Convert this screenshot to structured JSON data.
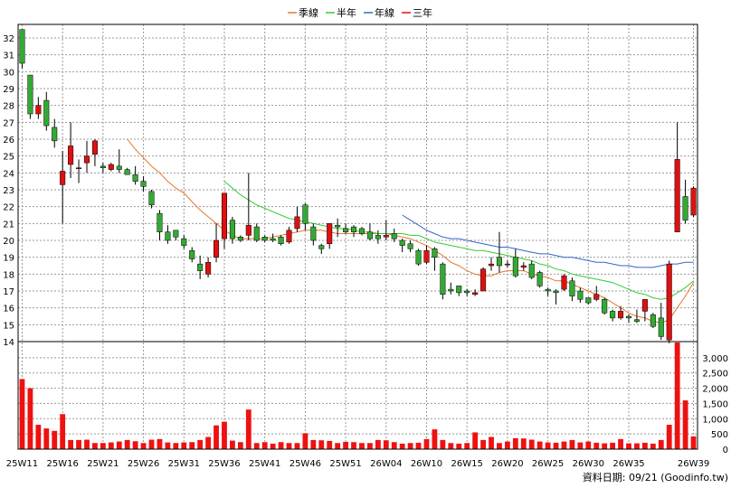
{
  "source_note": "資料日期: 09/21 (Goodinfo.tw)",
  "chart_data": {
    "type": "candlestick",
    "legend": [
      {
        "name": "季線",
        "color": "#e8762b"
      },
      {
        "name": "半年",
        "color": "#33cc33"
      },
      {
        "name": "年線",
        "color": "#3366cc"
      },
      {
        "name": "三年",
        "color": "#e01010"
      }
    ],
    "up_color": "#e01010",
    "down_color": "#33aa33",
    "volume_color": "#ee1111",
    "price_axis": {
      "min": 14,
      "max": 32,
      "ticks": [
        14,
        15,
        16,
        17,
        18,
        19,
        20,
        21,
        22,
        23,
        24,
        25,
        26,
        27,
        28,
        29,
        30,
        31,
        32
      ]
    },
    "volume_axis": {
      "min": 0,
      "max": 3000,
      "ticks": [
        0,
        500,
        1000,
        1500,
        2000,
        2500,
        3000
      ],
      "tick_labels": [
        "0",
        "500",
        "1,000",
        "1,500",
        "2,000",
        "2,500",
        "3,000"
      ]
    },
    "x_labels": [
      "25W11",
      "25W16",
      "25W21",
      "25W26",
      "25W31",
      "25W36",
      "25W41",
      "25W46",
      "25W51",
      "26W04",
      "26W10",
      "26W15",
      "26W20",
      "26W25",
      "26W30",
      "26W35",
      "26W39"
    ],
    "label_every": 5,
    "candles": [
      [
        32.5,
        30.5,
        32.5,
        30.2
      ],
      [
        29.8,
        27.5,
        29.8,
        27.2
      ],
      [
        27.5,
        28,
        28.5,
        27.2
      ],
      [
        28.3,
        26.8,
        28.8,
        26.5
      ],
      [
        26.7,
        25.9,
        27.2,
        25.5
      ],
      [
        23.3,
        24.1,
        25.3,
        21
      ],
      [
        24.5,
        25.6,
        27,
        23.7
      ],
      [
        24.3,
        24.3,
        24.8,
        23.4
      ],
      [
        24.6,
        25,
        25.9,
        24
      ],
      [
        25.1,
        25.9,
        26,
        24.4
      ],
      [
        24.4,
        24.3,
        24.6,
        24
      ],
      [
        24.2,
        24.5,
        24.6,
        24.1
      ],
      [
        24.4,
        24.2,
        25.4,
        24
      ],
      [
        24.2,
        23.9,
        24.3,
        23.9
      ],
      [
        23.9,
        23.5,
        24.4,
        23.3
      ],
      [
        23.5,
        23.2,
        23.8,
        22.9
      ],
      [
        22.9,
        22.1,
        23,
        21.9
      ],
      [
        21.6,
        20.5,
        21.8,
        20
      ],
      [
        20.5,
        20,
        20.9,
        19.8
      ],
      [
        20.6,
        20.2,
        20.6,
        20
      ],
      [
        20.1,
        19.7,
        20.3,
        19.5
      ],
      [
        19.4,
        18.9,
        19.6,
        18.7
      ],
      [
        18.6,
        18.2,
        19.1,
        17.7
      ],
      [
        18,
        18.7,
        19,
        17.8
      ],
      [
        19,
        20,
        21,
        18.7
      ],
      [
        20.1,
        22.8,
        22.8,
        19.5
      ],
      [
        21.2,
        20.1,
        21.4,
        19.8
      ],
      [
        20.2,
        20,
        20.3,
        19.9
      ],
      [
        20.3,
        20.9,
        24,
        20
      ],
      [
        20.8,
        20,
        21,
        19.9
      ],
      [
        20.2,
        20,
        20.3,
        19.9
      ],
      [
        20.1,
        20,
        20.4,
        19.9
      ],
      [
        20.2,
        19.8,
        20.3,
        19.7
      ],
      [
        19.9,
        20.6,
        20.8,
        19.8
      ],
      [
        20.7,
        21.4,
        22,
        20.5
      ],
      [
        22.1,
        21,
        22.2,
        20.6
      ],
      [
        20.8,
        20,
        21,
        19.7
      ],
      [
        19.7,
        19.5,
        19.8,
        19.2
      ],
      [
        19.8,
        21,
        21,
        19.5
      ],
      [
        20.9,
        20.8,
        21.3,
        20.2
      ],
      [
        20.7,
        20.5,
        21,
        20.4
      ],
      [
        20.8,
        20.5,
        20.9,
        20.2
      ],
      [
        20.7,
        20.4,
        20.8,
        20.3
      ],
      [
        20.5,
        20.1,
        21,
        20
      ],
      [
        20.3,
        20.1,
        20.6,
        19.8
      ],
      [
        20.2,
        20.3,
        21.2,
        20
      ],
      [
        20.4,
        20.1,
        20.7,
        19.9
      ],
      [
        20,
        19.7,
        20.1,
        19.3
      ],
      [
        19.8,
        19.5,
        20,
        19.3
      ],
      [
        19.4,
        18.6,
        19.5,
        18.5
      ],
      [
        18.7,
        19.4,
        19.7,
        18.6
      ],
      [
        19.5,
        19,
        19.6,
        18.2
      ],
      [
        18.6,
        16.8,
        18.7,
        16.5
      ],
      [
        17.1,
        17,
        17.5,
        16.8
      ],
      [
        17.3,
        16.9,
        17.3,
        16.7
      ],
      [
        17,
        16.9,
        17.1,
        16.7
      ],
      [
        16.8,
        16.9,
        17.1,
        16.7
      ],
      [
        17,
        18.3,
        18.4,
        17
      ],
      [
        18.5,
        18.6,
        19,
        18.2
      ],
      [
        19,
        18.5,
        20.5,
        18.1
      ],
      [
        18.6,
        18.6,
        18.8,
        18.4
      ],
      [
        19,
        17.9,
        19.5,
        17.8
      ],
      [
        18.4,
        18.5,
        18.7,
        18.2
      ],
      [
        18.6,
        17.8,
        18.8,
        17.7
      ],
      [
        18.1,
        17.3,
        18.2,
        17.2
      ],
      [
        17.1,
        17,
        17.2,
        16.7
      ],
      [
        17,
        16.9,
        17.1,
        16.2
      ],
      [
        17.1,
        17.9,
        18,
        17
      ],
      [
        17.6,
        16.7,
        17.8,
        16.4
      ],
      [
        17,
        16.5,
        17.2,
        16.3
      ],
      [
        16.6,
        16.3,
        16.6,
        16.2
      ],
      [
        16.5,
        16.8,
        17.3,
        16.4
      ],
      [
        16.5,
        15.7,
        16.6,
        15.6
      ],
      [
        15.8,
        15.4,
        15.9,
        15.2
      ],
      [
        15.4,
        15.8,
        16.1,
        15.3
      ],
      [
        15.5,
        15.4,
        15.6,
        15.1
      ],
      [
        15.3,
        15.2,
        15.9,
        15.1
      ],
      [
        15.8,
        16.5,
        16.5,
        15.2
      ],
      [
        15.6,
        14.9,
        15.7,
        14.8
      ],
      [
        15.4,
        14.3,
        16.3,
        14.1
      ],
      [
        14.1,
        18.6,
        18.8,
        13.9
      ],
      [
        20.5,
        24.8,
        27,
        20.5
      ],
      [
        22.6,
        21.2,
        23.6,
        21
      ],
      [
        21.5,
        23.1,
        23.2,
        21.4
      ]
    ],
    "volume": [
      2300,
      2000,
      800,
      680,
      600,
      1150,
      300,
      300,
      310,
      200,
      200,
      220,
      250,
      300,
      260,
      200,
      310,
      330,
      220,
      200,
      220,
      230,
      300,
      400,
      780,
      900,
      280,
      230,
      1300,
      200,
      230,
      180,
      230,
      200,
      200,
      520,
      300,
      290,
      270,
      200,
      240,
      230,
      200,
      200,
      300,
      290,
      230,
      180,
      200,
      210,
      330,
      650,
      300,
      200,
      180,
      200,
      550,
      300,
      400,
      200,
      250,
      360,
      350,
      310,
      250,
      220,
      210,
      250,
      300,
      220,
      250,
      210,
      190,
      210,
      330,
      190,
      190,
      210,
      180,
      300,
      800,
      3500,
      1600,
      420
    ],
    "ma_quarter": [
      [
        13,
        26
      ],
      [
        14,
        25.4
      ],
      [
        15,
        24.9
      ],
      [
        16,
        24.4
      ],
      [
        17,
        24
      ],
      [
        18,
        23.5
      ],
      [
        19,
        23.1
      ],
      [
        20,
        22.8
      ],
      [
        21,
        22.3
      ],
      [
        22,
        21.8
      ],
      [
        23,
        21.4
      ],
      [
        24,
        21
      ],
      [
        25,
        20.6
      ],
      [
        26,
        20.3
      ],
      [
        27,
        20.1
      ],
      [
        28,
        20.1
      ],
      [
        29,
        20.1
      ],
      [
        30,
        20.1
      ],
      [
        31,
        20.2
      ],
      [
        32,
        20.3
      ],
      [
        33,
        20.4
      ],
      [
        34,
        20.5
      ],
      [
        35,
        20.6
      ],
      [
        36,
        20.6
      ],
      [
        37,
        20.6
      ],
      [
        38,
        20.5
      ],
      [
        39,
        20.4
      ],
      [
        40,
        20.4
      ],
      [
        41,
        20.4
      ],
      [
        42,
        20.4
      ],
      [
        43,
        20.4
      ],
      [
        44,
        20.4
      ],
      [
        45,
        20.4
      ],
      [
        46,
        20.3
      ],
      [
        47,
        20.2
      ],
      [
        48,
        20.1
      ],
      [
        49,
        19.9
      ],
      [
        50,
        19.7
      ],
      [
        51,
        19.4
      ],
      [
        52,
        19.1
      ],
      [
        53,
        18.7
      ],
      [
        54,
        18.5
      ],
      [
        55,
        18.2
      ],
      [
        56,
        18
      ],
      [
        57,
        17.9
      ],
      [
        58,
        17.9
      ],
      [
        59,
        18.1
      ],
      [
        60,
        18.2
      ],
      [
        61,
        18.2
      ],
      [
        62,
        18.2
      ],
      [
        63,
        18
      ],
      [
        64,
        17.9
      ],
      [
        65,
        17.8
      ],
      [
        66,
        17.6
      ],
      [
        67,
        17.6
      ],
      [
        68,
        17.4
      ],
      [
        69,
        17.2
      ],
      [
        70,
        17
      ],
      [
        71,
        16.8
      ],
      [
        72,
        16.6
      ],
      [
        73,
        16.3
      ],
      [
        74,
        16
      ],
      [
        75,
        15.7
      ],
      [
        76,
        15.5
      ],
      [
        77,
        15.4
      ],
      [
        78,
        15.2
      ],
      [
        79,
        15.1
      ],
      [
        80,
        15.3
      ],
      [
        81,
        16
      ],
      [
        82,
        16.7
      ],
      [
        83,
        17.5
      ]
    ],
    "ma_halfyear": [
      [
        25,
        23.5
      ],
      [
        26,
        23.1
      ],
      [
        27,
        22.7
      ],
      [
        28,
        22.4
      ],
      [
        29,
        22.1
      ],
      [
        30,
        21.9
      ],
      [
        31,
        21.7
      ],
      [
        32,
        21.5
      ],
      [
        33,
        21.3
      ],
      [
        34,
        21.2
      ],
      [
        35,
        21.1
      ],
      [
        36,
        21
      ],
      [
        37,
        20.9
      ],
      [
        38,
        20.8
      ],
      [
        39,
        20.7
      ],
      [
        40,
        20.7
      ],
      [
        41,
        20.6
      ],
      [
        42,
        20.5
      ],
      [
        43,
        20.5
      ],
      [
        44,
        20.4
      ],
      [
        45,
        20.4
      ],
      [
        46,
        20.4
      ],
      [
        47,
        20.4
      ],
      [
        48,
        20.3
      ],
      [
        49,
        20.3
      ],
      [
        50,
        20.1
      ],
      [
        51,
        19.9
      ],
      [
        52,
        19.8
      ],
      [
        53,
        19.7
      ],
      [
        54,
        19.6
      ],
      [
        55,
        19.5
      ],
      [
        56,
        19.4
      ],
      [
        57,
        19.4
      ],
      [
        58,
        19.3
      ],
      [
        59,
        19.2
      ],
      [
        60,
        19.1
      ],
      [
        61,
        19
      ],
      [
        62,
        18.9
      ],
      [
        63,
        18.8
      ],
      [
        64,
        18.6
      ],
      [
        65,
        18.5
      ],
      [
        66,
        18.3
      ],
      [
        67,
        18.2
      ],
      [
        68,
        18
      ],
      [
        69,
        17.9
      ],
      [
        70,
        17.8
      ],
      [
        71,
        17.7
      ],
      [
        72,
        17.6
      ],
      [
        73,
        17.5
      ],
      [
        74,
        17.3
      ],
      [
        75,
        17.1
      ],
      [
        76,
        16.9
      ],
      [
        77,
        16.8
      ],
      [
        78,
        16.6
      ],
      [
        79,
        16.5
      ],
      [
        80,
        16.6
      ],
      [
        81,
        16.9
      ],
      [
        82,
        17.2
      ],
      [
        83,
        17.6
      ]
    ],
    "ma_year": [
      [
        47,
        21.5
      ],
      [
        48,
        21.2
      ],
      [
        49,
        20.9
      ],
      [
        50,
        20.6
      ],
      [
        51,
        20.4
      ],
      [
        52,
        20.2
      ],
      [
        53,
        20.1
      ],
      [
        54,
        20.1
      ],
      [
        55,
        20
      ],
      [
        56,
        19.9
      ],
      [
        57,
        19.8
      ],
      [
        58,
        19.7
      ],
      [
        59,
        19.6
      ],
      [
        60,
        19.6
      ],
      [
        61,
        19.5
      ],
      [
        62,
        19.4
      ],
      [
        63,
        19.3
      ],
      [
        64,
        19.2
      ],
      [
        65,
        19.2
      ],
      [
        66,
        19.1
      ],
      [
        67,
        19
      ],
      [
        68,
        19
      ],
      [
        69,
        18.9
      ],
      [
        70,
        18.8
      ],
      [
        71,
        18.7
      ],
      [
        72,
        18.7
      ],
      [
        73,
        18.6
      ],
      [
        74,
        18.5
      ],
      [
        75,
        18.5
      ],
      [
        76,
        18.4
      ],
      [
        77,
        18.4
      ],
      [
        78,
        18.4
      ],
      [
        79,
        18.5
      ],
      [
        80,
        18.6
      ],
      [
        81,
        18.6
      ],
      [
        82,
        18.7
      ],
      [
        83,
        18.7
      ]
    ]
  }
}
